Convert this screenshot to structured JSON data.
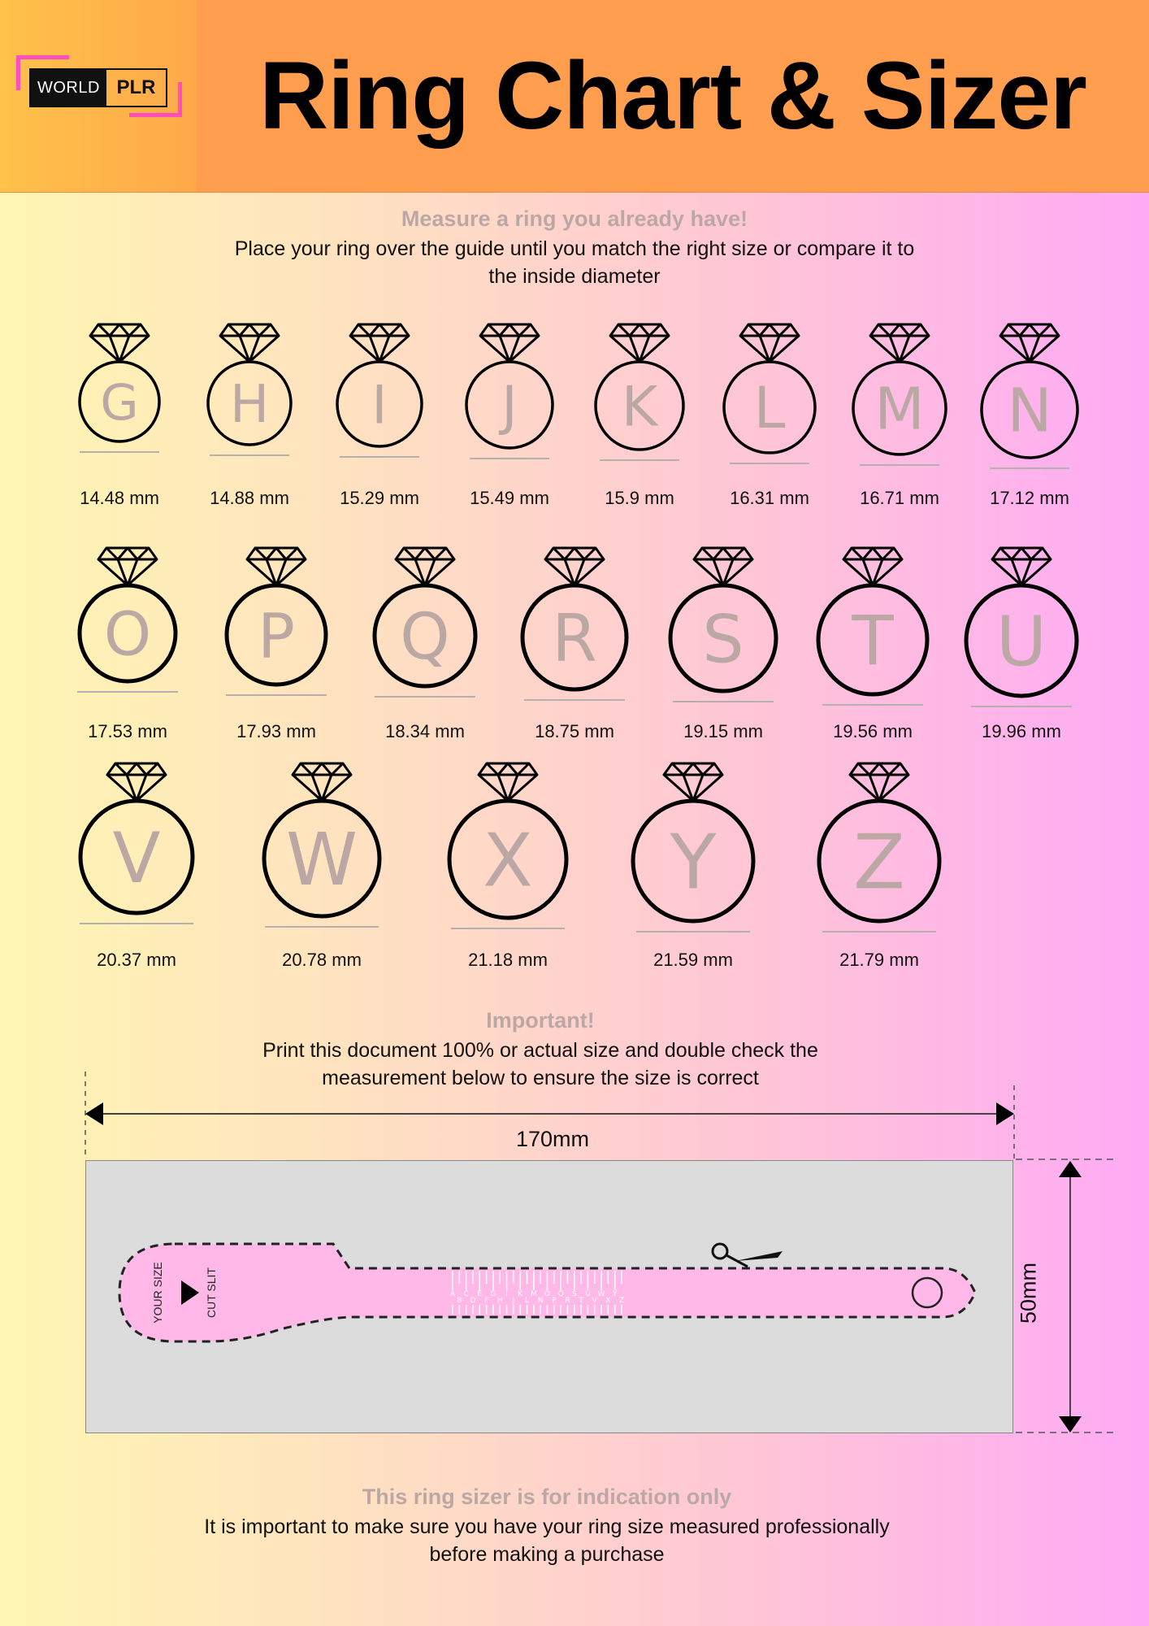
{
  "header": {
    "logo_left": "WORLD",
    "logo_right": "PLR",
    "title": "Ring Chart & Sizer"
  },
  "intro": {
    "heading": "Measure a ring you already have!",
    "line1": "Place your ring over the guide until you match the right size or compare it to",
    "line2": "the inside diameter"
  },
  "rings": {
    "row1": [
      {
        "letter": "G",
        "size": "14.48 mm"
      },
      {
        "letter": "H",
        "size": "14.88 mm"
      },
      {
        "letter": "I",
        "size": "15.29 mm"
      },
      {
        "letter": "J",
        "size": "15.49 mm"
      },
      {
        "letter": "K",
        "size": "15.9 mm"
      },
      {
        "letter": "L",
        "size": "16.31 mm"
      },
      {
        "letter": "M",
        "size": "16.71 mm"
      },
      {
        "letter": "N",
        "size": "17.12 mm"
      }
    ],
    "row2": [
      {
        "letter": "O",
        "size": "17.53 mm"
      },
      {
        "letter": "P",
        "size": "17.93 mm"
      },
      {
        "letter": "Q",
        "size": "18.34 mm"
      },
      {
        "letter": "R",
        "size": "18.75 mm"
      },
      {
        "letter": "S",
        "size": "19.15 mm"
      },
      {
        "letter": "T",
        "size": "19.56 mm"
      },
      {
        "letter": "U",
        "size": "19.96 mm"
      }
    ],
    "row3": [
      {
        "letter": "V",
        "size": "20.37 mm"
      },
      {
        "letter": "W",
        "size": "20.78 mm"
      },
      {
        "letter": "X",
        "size": "21.18 mm"
      },
      {
        "letter": "Y",
        "size": "21.59 mm"
      },
      {
        "letter": "Z",
        "size": "21.79 mm"
      }
    ]
  },
  "important": {
    "heading": "Important!",
    "line1": "Print this document 100% or actual size and double check the",
    "line2": "measurement below to ensure the size is correct"
  },
  "sizer": {
    "width_label": "170mm",
    "height_label": "50mm",
    "your_size_label": "YOUR SIZE",
    "cut_slit_label": "CUT SLIT",
    "scale_letters": "ABCDEFGHIJKLMNOPQRSTUVWXYZ"
  },
  "footer": {
    "heading": "This ring sizer is for indication only",
    "line1": "It is important to make sure you have your ring size measured professionally",
    "line2": "before making a purchase"
  },
  "colors": {
    "header_bg": "#ff9e4e",
    "heading_gray": "#bba8a5",
    "ring_letter_gray": "#bba8a5",
    "sizer_bg": "#dcdcdc",
    "sizer_strip": "#ffb8e8"
  }
}
